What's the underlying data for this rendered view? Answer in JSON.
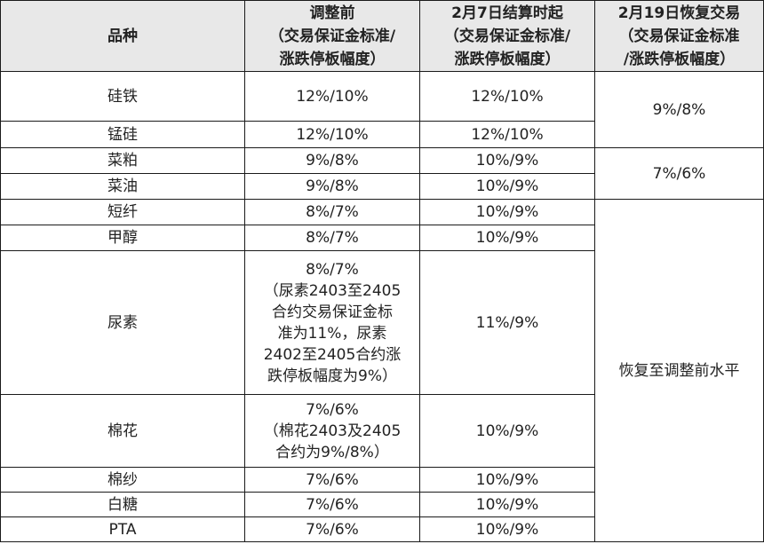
{
  "headers": {
    "product": "品种",
    "before": "调整前\n（交易保证金标准/\n涨跌停板幅度）",
    "feb7": "2月7日结算时起\n（交易保证金标准/\n涨跌停板幅度）",
    "feb19": "2月19日恢复交易\n（交易保证金标准\n/涨跌停板幅度）"
  },
  "rows": [
    {
      "product": "硅铁",
      "before": "12%/10%",
      "feb7": "12%/10%"
    },
    {
      "product": "锰硅",
      "before": "12%/10%",
      "feb7": "12%/10%"
    },
    {
      "product": "菜粕",
      "before": "9%/8%",
      "feb7": "10%/9%"
    },
    {
      "product": "菜油",
      "before": "9%/8%",
      "feb7": "10%/9%"
    },
    {
      "product": "短纤",
      "before": "8%/7%",
      "feb7": "10%/9%"
    },
    {
      "product": "甲醇",
      "before": "8%/7%",
      "feb7": "10%/9%"
    },
    {
      "product": "尿素",
      "before": "8%/7%\n（尿素2403至2405\n合约交易保证金标\n准为11%，尿素\n2402至2405合约涨\n跌停板幅度为9%）",
      "feb7": "11%/9%"
    },
    {
      "product": "棉花",
      "before": "7%/6%\n（棉花2403及2405\n合约为9%/8%）",
      "feb7": "10%/9%"
    },
    {
      "product": "棉纱",
      "before": "7%/6%",
      "feb7": "10%/9%"
    },
    {
      "product": "白糖",
      "before": "7%/6%",
      "feb7": "10%/9%"
    },
    {
      "product": "PTA",
      "before": "7%/6%",
      "feb7": "10%/9%"
    }
  ],
  "merged": {
    "group1": "9%/8%",
    "group2": "7%/6%",
    "group3": "恢复至调整前水平"
  }
}
